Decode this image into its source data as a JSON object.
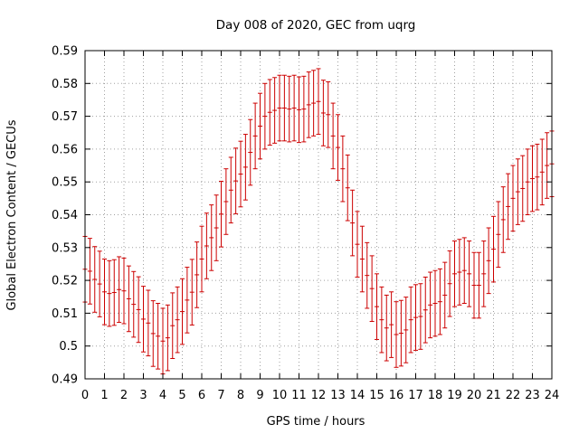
{
  "chart_data": {
    "type": "scatter",
    "title": "Day 008 of 2020, GEC from uqrg",
    "xlabel": "GPS time / hours",
    "ylabel": "Global Electron Content / GECUs",
    "xlim": [
      0,
      24
    ],
    "ylim": [
      0.49,
      0.59
    ],
    "xticks": [
      "0",
      "1",
      "2",
      "3",
      "4",
      "5",
      "6",
      "7",
      "8",
      "9",
      "10",
      "11",
      "12",
      "13",
      "14",
      "15",
      "16",
      "17",
      "18",
      "19",
      "20",
      "21",
      "22",
      "23",
      "24"
    ],
    "yticks": [
      "0.49",
      "0.5",
      "0.51",
      "0.52",
      "0.53",
      "0.54",
      "0.55",
      "0.56",
      "0.57",
      "0.58",
      "0.59"
    ],
    "grid": true,
    "error_bar": 0.01,
    "series_color": "#cc0000",
    "series": [
      {
        "x": [
          0,
          0.25,
          0.5,
          0.75,
          1,
          1.25,
          1.5,
          1.75,
          2,
          2.25,
          2.5,
          2.75,
          3,
          3.25,
          3.5,
          3.75,
          4,
          4.25,
          4.5,
          4.75,
          5,
          5.25,
          5.5,
          5.75,
          6,
          6.25,
          6.5,
          6.75,
          7,
          7.25,
          7.5,
          7.75,
          8,
          8.25,
          8.5,
          8.75,
          9,
          9.25,
          9.5,
          9.75,
          10,
          10.25,
          10.5,
          10.75,
          11,
          11.25,
          11.5,
          11.75,
          12,
          12.25,
          12.5,
          12.75,
          13,
          13.25,
          13.5,
          13.75,
          14,
          14.25,
          14.5,
          14.75,
          15,
          15.25,
          15.5,
          15.75,
          16,
          16.25,
          16.5,
          16.75,
          17,
          17.25,
          17.5,
          17.75,
          18,
          18.25,
          18.5,
          18.75,
          19,
          19.25,
          19.5,
          19.75,
          20,
          20.25,
          20.5,
          20.75,
          21,
          21.25,
          21.5,
          21.75,
          22,
          22.25,
          22.5,
          22.75,
          23,
          23.25,
          23.5,
          23.75,
          24
        ],
        "y": [
          0.5234,
          0.5228,
          0.5203,
          0.5189,
          0.5165,
          0.516,
          0.5163,
          0.5172,
          0.5168,
          0.5144,
          0.5127,
          0.5111,
          0.5082,
          0.507,
          0.5038,
          0.503,
          0.5015,
          0.5025,
          0.5062,
          0.508,
          0.5105,
          0.514,
          0.5164,
          0.5217,
          0.5265,
          0.5305,
          0.533,
          0.536,
          0.5402,
          0.544,
          0.5475,
          0.5503,
          0.5524,
          0.5545,
          0.559,
          0.564,
          0.567,
          0.57,
          0.5712,
          0.5718,
          0.5725,
          0.5725,
          0.5722,
          0.5725,
          0.572,
          0.5722,
          0.5735,
          0.574,
          0.5745,
          0.571,
          0.5705,
          0.564,
          0.5605,
          0.554,
          0.5482,
          0.5375,
          0.531,
          0.5265,
          0.5215,
          0.5175,
          0.512,
          0.508,
          0.5055,
          0.5065,
          0.5035,
          0.5039,
          0.5049,
          0.508,
          0.5087,
          0.509,
          0.511,
          0.5125,
          0.513,
          0.5135,
          0.5155,
          0.519,
          0.522,
          0.5225,
          0.523,
          0.522,
          0.5185,
          0.5185,
          0.522,
          0.526,
          0.5295,
          0.534,
          0.5385,
          0.5425,
          0.545,
          0.547,
          0.548,
          0.55,
          0.551,
          0.5515,
          0.553,
          0.555,
          0.5555
        ]
      }
    ]
  }
}
